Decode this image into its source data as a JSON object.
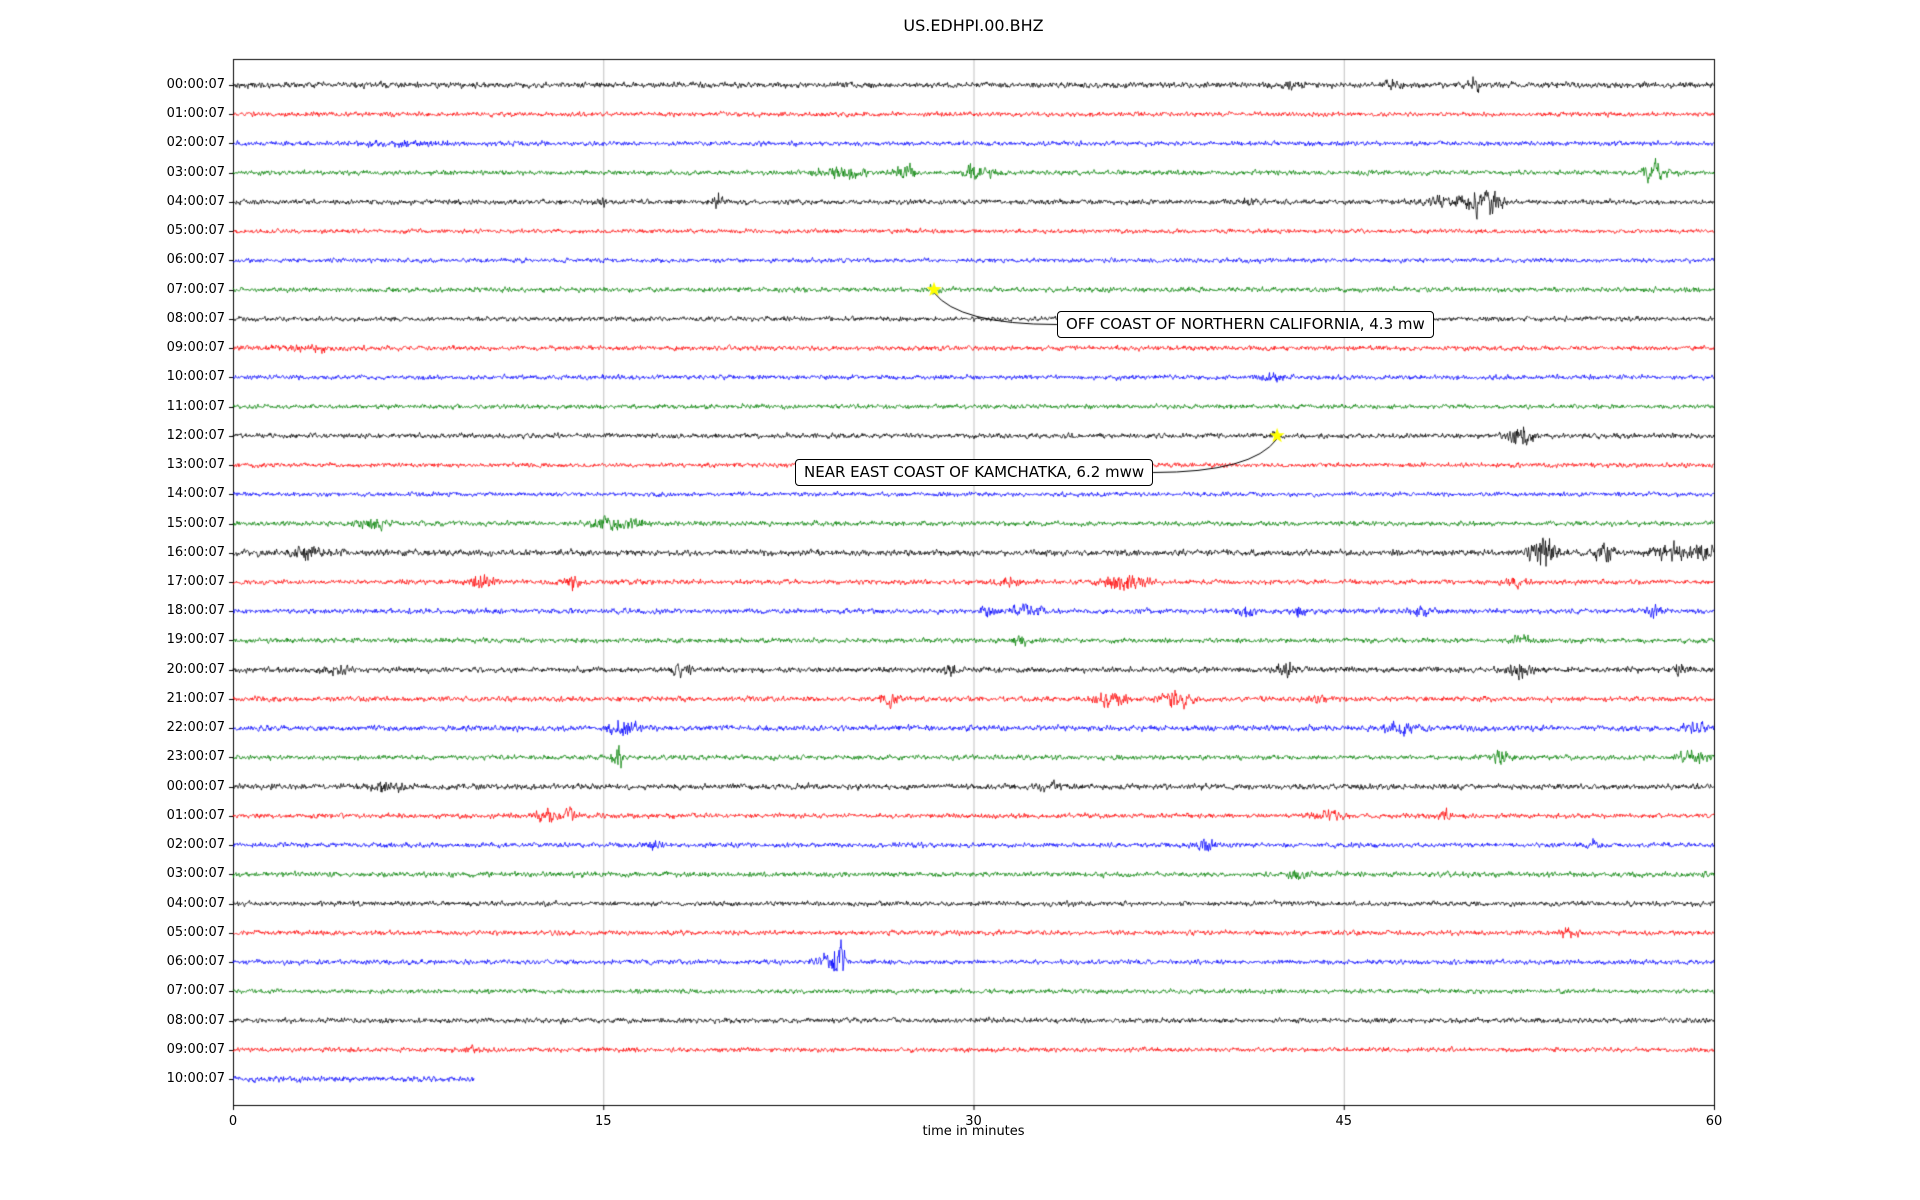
{
  "title": "US.EDHPI.00.BHZ",
  "chart_data": {
    "type": "line",
    "subtype": "seismogram-dayplot",
    "title": "US.EDHPI.00.BHZ",
    "xlabel": "time in minutes",
    "xlim": [
      0,
      60
    ],
    "xticks": [
      0,
      15,
      30,
      45,
      60
    ],
    "grid": "vertical-at-xticks",
    "legend": "none",
    "colors": {
      "black": "#000000",
      "red": "#ff0000",
      "blue": "#0000ff",
      "green": "#008000"
    },
    "marker_color": "#ffff00",
    "rows": [
      {
        "label": "00:00:07",
        "color": "black",
        "amp": 1.2,
        "events": [
          {
            "m": 43,
            "a": 1.2,
            "w": 0.4
          },
          {
            "m": 47,
            "a": 1.0,
            "w": 0.3
          },
          {
            "m": 50.2,
            "a": 2.0,
            "w": 0.35
          }
        ]
      },
      {
        "label": "01:00:07",
        "color": "red",
        "amp": 0.95,
        "events": []
      },
      {
        "label": "02:00:07",
        "color": "blue",
        "amp": 0.95,
        "events": [
          {
            "m": 7,
            "a": 0.8,
            "w": 2
          }
        ]
      },
      {
        "label": "03:00:07",
        "color": "green",
        "amp": 1.0,
        "events": [
          {
            "m": 24.6,
            "a": 2.2,
            "w": 0.9
          },
          {
            "m": 27.2,
            "a": 2.0,
            "w": 0.5
          },
          {
            "m": 29.9,
            "a": 5.5,
            "w": 0.18
          },
          {
            "m": 30.6,
            "a": 2.2,
            "w": 0.5
          },
          {
            "m": 57.6,
            "a": 3.5,
            "w": 0.45
          }
        ]
      },
      {
        "label": "04:00:07",
        "color": "black",
        "amp": 1.05,
        "events": [
          {
            "m": 14.9,
            "a": 1.5,
            "w": 0.2
          },
          {
            "m": 19.6,
            "a": 4.5,
            "w": 0.15
          },
          {
            "m": 41,
            "a": 1.2,
            "w": 0.4
          },
          {
            "m": 48.8,
            "a": 2.0,
            "w": 0.8
          },
          {
            "m": 50.3,
            "a": 5.0,
            "w": 0.45
          },
          {
            "m": 51.1,
            "a": 3.5,
            "w": 0.35
          }
        ]
      },
      {
        "label": "05:00:07",
        "color": "red",
        "amp": 0.9,
        "events": []
      },
      {
        "label": "06:00:07",
        "color": "blue",
        "amp": 0.9,
        "events": []
      },
      {
        "label": "07:00:07",
        "color": "green",
        "amp": 1.0,
        "events": [
          {
            "m": 28.4,
            "a": 1.5,
            "w": 0.25
          }
        ]
      },
      {
        "label": "08:00:07",
        "color": "black",
        "amp": 0.95,
        "events": []
      },
      {
        "label": "09:00:07",
        "color": "red",
        "amp": 1.0,
        "events": [
          {
            "m": 3,
            "a": 0.9,
            "w": 1.5
          }
        ]
      },
      {
        "label": "10:00:07",
        "color": "blue",
        "amp": 0.95,
        "events": [
          {
            "m": 42,
            "a": 1.2,
            "w": 0.5
          }
        ]
      },
      {
        "label": "11:00:07",
        "color": "green",
        "amp": 0.95,
        "events": []
      },
      {
        "label": "12:00:07",
        "color": "black",
        "amp": 1.05,
        "events": [
          {
            "m": 42.3,
            "a": 1.2,
            "w": 0.3
          },
          {
            "m": 52.2,
            "a": 3.8,
            "w": 0.55
          }
        ]
      },
      {
        "label": "13:00:07",
        "color": "red",
        "amp": 0.95,
        "events": []
      },
      {
        "label": "14:00:07",
        "color": "blue",
        "amp": 0.9,
        "events": []
      },
      {
        "label": "15:00:07",
        "color": "green",
        "amp": 1.0,
        "events": [
          {
            "m": 5.6,
            "a": 2.2,
            "w": 0.6
          },
          {
            "m": 15.4,
            "a": 2.4,
            "w": 0.7
          },
          {
            "m": 16.2,
            "a": 1.8,
            "w": 0.4
          }
        ]
      },
      {
        "label": "16:00:07",
        "color": "black",
        "amp": 1.25,
        "events": [
          {
            "m": 3,
            "a": 1.3,
            "w": 0.8
          },
          {
            "m": 53.1,
            "a": 5.5,
            "w": 0.5
          },
          {
            "m": 55.6,
            "a": 3.5,
            "w": 0.35
          },
          {
            "m": 58.1,
            "a": 3.0,
            "w": 0.7
          },
          {
            "m": 59.5,
            "a": 2.8,
            "w": 0.4
          }
        ]
      },
      {
        "label": "17:00:07",
        "color": "red",
        "amp": 1.0,
        "events": [
          {
            "m": 10.1,
            "a": 2.2,
            "w": 0.55
          },
          {
            "m": 13.7,
            "a": 2.4,
            "w": 0.35
          },
          {
            "m": 31.2,
            "a": 1.5,
            "w": 0.5
          },
          {
            "m": 36.1,
            "a": 2.8,
            "w": 0.9
          },
          {
            "m": 52,
            "a": 1.8,
            "w": 0.5
          }
        ]
      },
      {
        "label": "18:00:07",
        "color": "blue",
        "amp": 1.05,
        "events": [
          {
            "m": 30.6,
            "a": 1.8,
            "w": 0.35
          },
          {
            "m": 32.1,
            "a": 2.2,
            "w": 0.7
          },
          {
            "m": 41.1,
            "a": 2.0,
            "w": 0.35
          },
          {
            "m": 43.2,
            "a": 1.6,
            "w": 0.3
          },
          {
            "m": 48.1,
            "a": 1.8,
            "w": 0.45
          },
          {
            "m": 57.6,
            "a": 1.8,
            "w": 0.35
          }
        ]
      },
      {
        "label": "19:00:07",
        "color": "green",
        "amp": 1.0,
        "events": [
          {
            "m": 31.9,
            "a": 2.8,
            "w": 0.25
          },
          {
            "m": 52.2,
            "a": 1.8,
            "w": 0.3
          }
        ]
      },
      {
        "label": "20:00:07",
        "color": "black",
        "amp": 1.15,
        "events": [
          {
            "m": 4.1,
            "a": 1.7,
            "w": 0.5
          },
          {
            "m": 18.2,
            "a": 1.7,
            "w": 0.4
          },
          {
            "m": 29.1,
            "a": 1.5,
            "w": 0.4
          },
          {
            "m": 42.6,
            "a": 2.0,
            "w": 0.4
          },
          {
            "m": 52.1,
            "a": 2.2,
            "w": 0.6
          },
          {
            "m": 58.6,
            "a": 2.5,
            "w": 0.3
          }
        ]
      },
      {
        "label": "21:00:07",
        "color": "red",
        "amp": 1.05,
        "events": [
          {
            "m": 26.6,
            "a": 2.6,
            "w": 0.4
          },
          {
            "m": 35.6,
            "a": 2.6,
            "w": 0.6
          },
          {
            "m": 38.1,
            "a": 3.0,
            "w": 0.6
          },
          {
            "m": 44.1,
            "a": 1.6,
            "w": 0.4
          }
        ]
      },
      {
        "label": "22:00:07",
        "color": "blue",
        "amp": 1.15,
        "events": [
          {
            "m": 15.8,
            "a": 3.5,
            "w": 0.5
          },
          {
            "m": 47.2,
            "a": 2.2,
            "w": 0.6
          },
          {
            "m": 59.2,
            "a": 2.0,
            "w": 0.4
          }
        ]
      },
      {
        "label": "23:00:07",
        "color": "green",
        "amp": 1.0,
        "events": [
          {
            "m": 15.6,
            "a": 4.5,
            "w": 0.2
          },
          {
            "m": 51.4,
            "a": 2.6,
            "w": 0.3
          },
          {
            "m": 59.1,
            "a": 2.2,
            "w": 0.7
          }
        ]
      },
      {
        "label": "00:00:07",
        "color": "black",
        "amp": 1.15,
        "events": [
          {
            "m": 6.2,
            "a": 1.3,
            "w": 0.8
          },
          {
            "m": 33.1,
            "a": 1.3,
            "w": 0.5
          }
        ]
      },
      {
        "label": "01:00:07",
        "color": "red",
        "amp": 1.0,
        "events": [
          {
            "m": 12.7,
            "a": 2.6,
            "w": 0.45
          },
          {
            "m": 13.7,
            "a": 2.2,
            "w": 0.3
          },
          {
            "m": 44.4,
            "a": 2.4,
            "w": 0.55
          },
          {
            "m": 49.2,
            "a": 1.5,
            "w": 0.3
          }
        ]
      },
      {
        "label": "02:00:07",
        "color": "blue",
        "amp": 1.0,
        "events": [
          {
            "m": 17.1,
            "a": 1.4,
            "w": 0.4
          },
          {
            "m": 39.4,
            "a": 2.0,
            "w": 0.4
          },
          {
            "m": 55.2,
            "a": 1.4,
            "w": 0.4
          }
        ]
      },
      {
        "label": "03:00:07",
        "color": "green",
        "amp": 1.05,
        "events": [
          {
            "m": 43.1,
            "a": 1.4,
            "w": 0.5
          }
        ]
      },
      {
        "label": "04:00:07",
        "color": "black",
        "amp": 1.0,
        "events": []
      },
      {
        "label": "05:00:07",
        "color": "red",
        "amp": 1.0,
        "events": [
          {
            "m": 54.1,
            "a": 1.5,
            "w": 0.4
          }
        ]
      },
      {
        "label": "06:00:07",
        "color": "blue",
        "amp": 1.0,
        "events": [
          {
            "m": 23.9,
            "a": 2.5,
            "w": 0.4
          },
          {
            "m": 24.5,
            "a": 7.5,
            "w": 0.28
          }
        ]
      },
      {
        "label": "07:00:07",
        "color": "green",
        "amp": 0.95,
        "events": []
      },
      {
        "label": "08:00:07",
        "color": "black",
        "amp": 1.05,
        "events": []
      },
      {
        "label": "09:00:07",
        "color": "red",
        "amp": 0.95,
        "events": [
          {
            "m": 9.6,
            "a": 1.2,
            "w": 0.4
          }
        ]
      },
      {
        "label": "10:00:07",
        "color": "blue",
        "amp": 1.15,
        "coverage": 0.163,
        "events": []
      }
    ],
    "annotations": [
      {
        "text": "OFF COAST OF NORTHERN CALIFORNIA, 4.3 mw",
        "marker": {
          "row": 7,
          "minute": 28.4
        },
        "label": {
          "row": 8.2,
          "minute": 41.0
        }
      },
      {
        "text": "NEAR EAST COAST OF KAMCHATKA, 6.2 mww",
        "marker": {
          "row": 12,
          "minute": 42.3
        },
        "label": {
          "row": 13.25,
          "minute": 30.0
        }
      }
    ]
  }
}
